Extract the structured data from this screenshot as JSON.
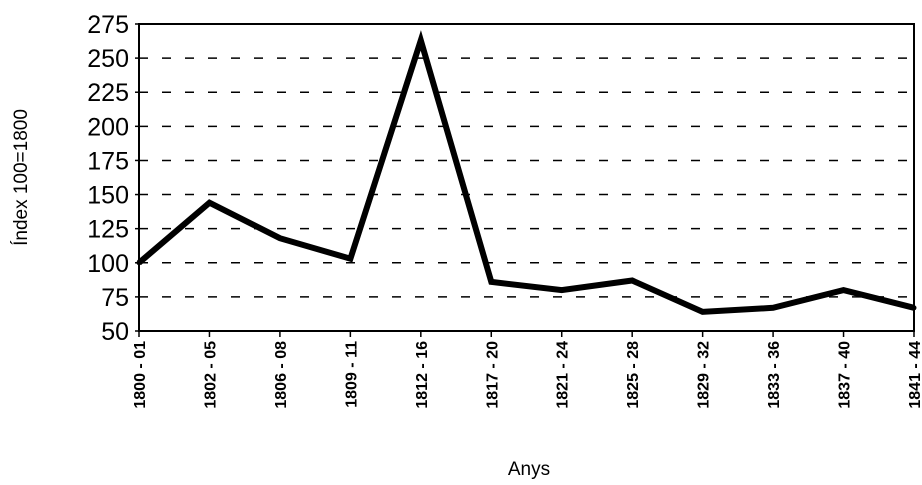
{
  "chart_data": {
    "type": "line",
    "xlabel": "Anys",
    "ylabel": "Índex 100=1800",
    "ylim": [
      50,
      275
    ],
    "yticks": [
      50,
      75,
      100,
      125,
      150,
      175,
      200,
      225,
      250,
      275
    ],
    "grid": "horizontal dashed",
    "categories": [
      "1800 - 01",
      "1802 - 05",
      "1806 - 08",
      "1809 - 11",
      "1812 - 16",
      "1817 - 20",
      "1821 - 24",
      "1825 - 28",
      "1829 - 32",
      "1833 - 36",
      "1837 - 40",
      "1841 - 44"
    ],
    "series": [
      {
        "values": [
          100,
          144,
          118,
          103,
          263,
          86,
          80,
          87,
          64,
          67,
          80,
          67
        ]
      }
    ],
    "colors": {
      "line": "#000000",
      "grid": "#000000",
      "background": "#ffffff"
    }
  }
}
